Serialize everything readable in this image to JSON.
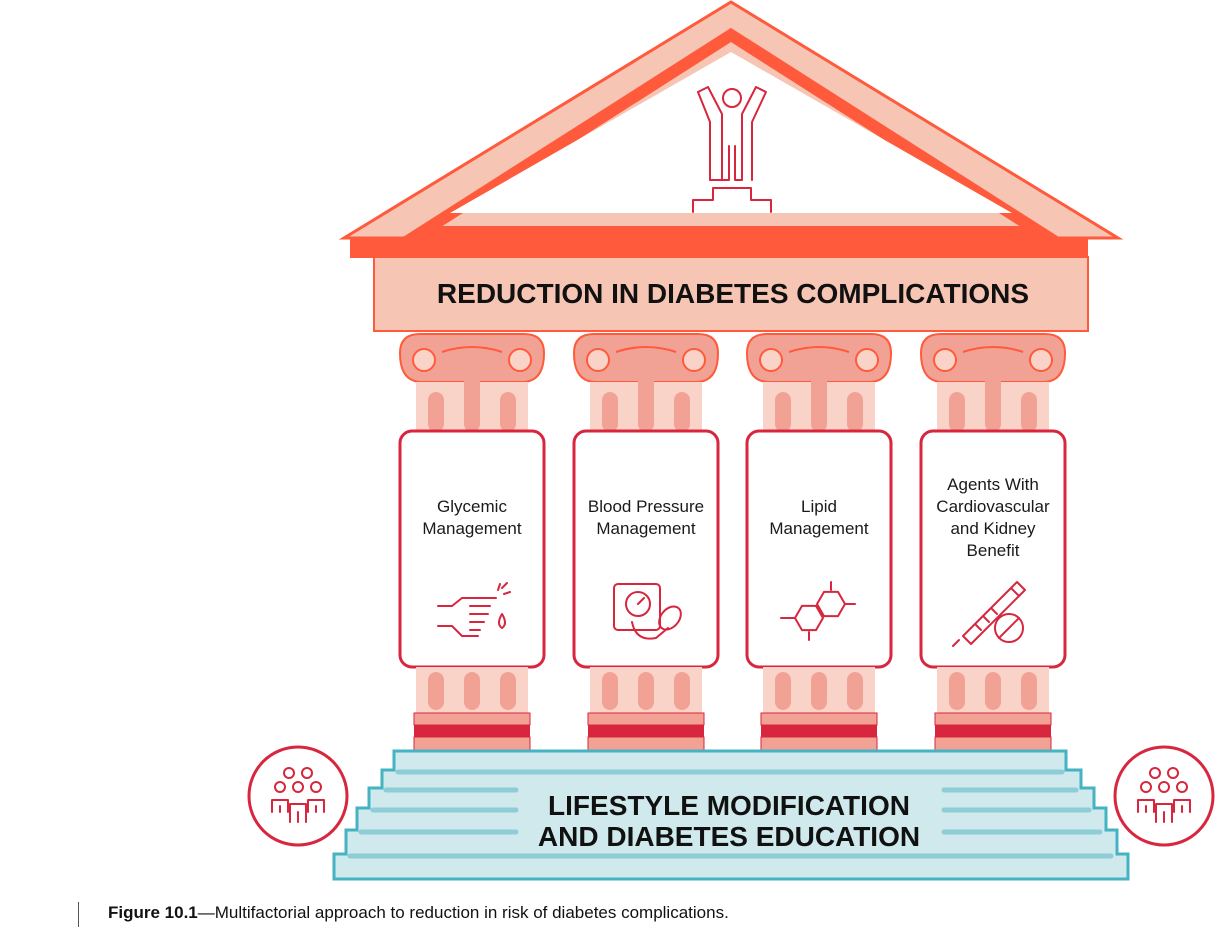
{
  "roof": {
    "title": "REDUCTION IN DIABETES COMPLICATIONS",
    "icon": "person-raised-arms-icon"
  },
  "pillars": [
    {
      "lines": [
        "Glycemic",
        "Management"
      ],
      "icon": "finger-prick-icon"
    },
    {
      "lines": [
        "Blood Pressure",
        "Management"
      ],
      "icon": "blood-pressure-monitor-icon"
    },
    {
      "lines": [
        "Lipid",
        "Management"
      ],
      "icon": "molecule-icon"
    },
    {
      "lines": [
        "Agents With",
        "Cardiovascular",
        "and Kidney",
        "Benefit"
      ],
      "icon": "injection-pen-icon"
    }
  ],
  "base": {
    "lines": [
      "LIFESTYLE MODIFICATION",
      "AND DIABETES EDUCATION"
    ],
    "icon": "group-people-icon"
  },
  "caption": {
    "label": "Figure 10.1",
    "text": "—Multifactorial approach to reduction in risk of diabetes complications."
  },
  "colors": {
    "roof_fill": "#f7c5b4",
    "roof_stroke": "#ff5a3c",
    "accent_red": "#d7263d",
    "column_fill": "#f2a294",
    "column_light": "#f9d3c8",
    "step_fill": "#cfe9ec",
    "step_stroke": "#46b3c2"
  }
}
